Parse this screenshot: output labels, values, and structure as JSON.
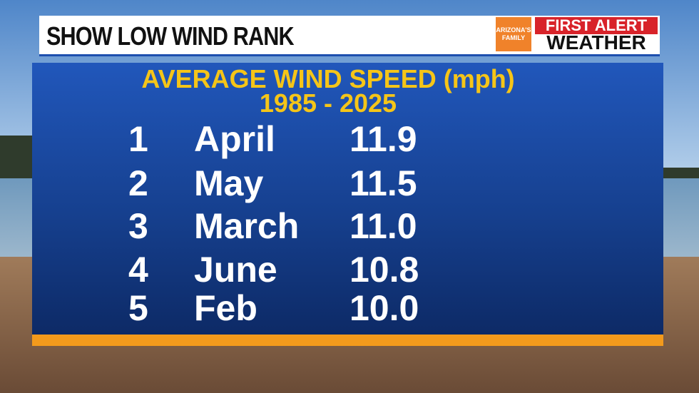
{
  "header": {
    "title": "SHOW LOW WIND RANK",
    "logo": "ARIZONA'S FAMILY",
    "brand_top": "FIRST ALERT",
    "brand_bottom": "WEATHER"
  },
  "table": {
    "heading": "AVERAGE WIND SPEED (mph)",
    "subheading": "1985 - 2025",
    "rows": [
      [
        "1",
        "April",
        "11.9"
      ],
      [
        "2",
        "May",
        "11.5"
      ],
      [
        "3",
        "March",
        "11.0"
      ],
      [
        "4",
        "June",
        "10.8"
      ],
      [
        "5",
        "Feb",
        "10.0"
      ]
    ]
  }
}
